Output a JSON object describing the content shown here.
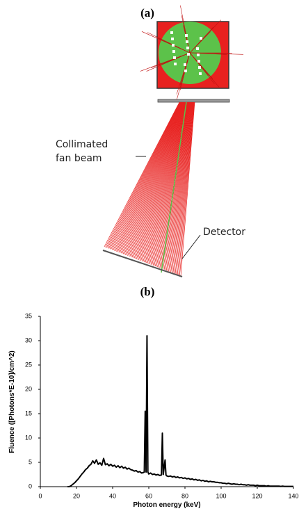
{
  "panel_a": {
    "label": "(a)",
    "annotations": [
      "Collimated",
      "fan beam",
      "Detector"
    ]
  },
  "panel_b": {
    "label": "(b)"
  },
  "chart_data": {
    "type": "line",
    "x_label": "Photon energy (keV)",
    "y_label": "Fluence ([Photons*E-10]/cm^2)",
    "color": "#000000",
    "x": [
      15,
      16,
      17,
      18,
      19,
      20,
      21,
      22,
      23,
      24,
      25,
      26,
      27,
      28,
      29,
      30,
      31,
      32,
      33,
      34,
      35,
      36,
      37,
      38,
      39,
      40,
      41,
      42,
      43,
      44,
      45,
      46,
      47,
      48,
      49,
      50,
      51,
      52,
      53,
      54,
      55,
      56,
      57,
      57.5,
      58,
      58.5,
      59,
      59.5,
      60,
      61,
      62,
      63,
      64,
      65,
      66,
      67,
      67.5,
      68,
      69,
      69.5,
      70,
      71,
      72,
      73,
      74,
      75,
      76,
      77,
      78,
      79,
      80,
      81,
      82,
      83,
      84,
      85,
      86,
      87,
      88,
      89,
      90,
      91,
      92,
      93,
      94,
      95,
      96,
      97,
      98,
      99,
      100,
      101,
      102,
      103,
      104,
      105,
      106,
      107,
      108,
      109,
      110,
      111,
      112,
      113,
      114,
      115,
      116,
      117,
      118,
      119,
      120,
      121,
      122,
      123,
      124,
      125,
      126,
      127,
      128,
      129,
      130,
      131,
      132,
      133,
      134,
      135,
      136,
      137,
      138,
      139,
      140
    ],
    "values": [
      0,
      0,
      0.2,
      0.5,
      0.8,
      1.2,
      1.6,
      2.1,
      2.6,
      3.0,
      3.5,
      3.8,
      4.3,
      4.6,
      5.3,
      4.8,
      5.5,
      4.6,
      4.9,
      4.4,
      5.8,
      4.5,
      4.7,
      4.3,
      4.6,
      4.2,
      4.4,
      4.0,
      4.3,
      3.9,
      4.2,
      3.8,
      4.0,
      3.6,
      3.8,
      3.5,
      3.4,
      3.2,
      3.3,
      3.0,
      3.1,
      2.8,
      2.9,
      3,
      15.5,
      3,
      31,
      3,
      2.6,
      2.8,
      2.5,
      2.6,
      2.4,
      2.5,
      2.3,
      2.4,
      11,
      2.5,
      5.5,
      2.4,
      2.2,
      2.1,
      2.2,
      2.0,
      2.1,
      1.9,
      2.0,
      1.8,
      1.9,
      1.7,
      1.8,
      1.6,
      1.7,
      1.5,
      1.6,
      1.4,
      1.5,
      1.3,
      1.4,
      1.2,
      1.3,
      1.1,
      1.2,
      1.0,
      1.1,
      1.0,
      1.0,
      0.9,
      0.9,
      0.8,
      0.8,
      0.7,
      0.7,
      0.6,
      0.7,
      0.6,
      0.5,
      0.6,
      0.5,
      0.5,
      0.4,
      0.5,
      0.4,
      0.4,
      0.3,
      0.4,
      0.3,
      0.3,
      0.3,
      0.2,
      0.3,
      0.2,
      0.2,
      0.2,
      0.2,
      0.1,
      0.2,
      0.1,
      0.1,
      0.1,
      0.1,
      0.1,
      0.1,
      0.05,
      0.1,
      0.05,
      0.05,
      0.05,
      0.05,
      0.05,
      0.05
    ],
    "xlim": [
      0,
      140
    ],
    "xticks": [
      0,
      20,
      40,
      60,
      80,
      100,
      120,
      140
    ],
    "ylim": [
      0,
      35
    ],
    "yticks": [
      0,
      5,
      10,
      15,
      20,
      25,
      30,
      35
    ]
  }
}
